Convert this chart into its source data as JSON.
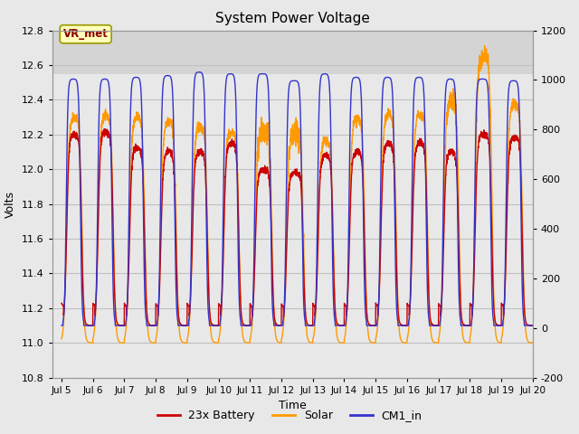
{
  "title": "System Power Voltage",
  "xlabel": "Time",
  "ylabel": "Volts",
  "ylim_left": [
    10.8,
    12.8
  ],
  "ylim_right": [
    -200,
    1200
  ],
  "xtick_labels": [
    "Jul 5",
    "Jul 6",
    "Jul 7",
    "Jul 8",
    "Jul 9",
    "Jul 10",
    "Jul 11",
    "Jul 12",
    "Jul 13",
    "Jul 14",
    "Jul 15",
    "Jul 16",
    "Jul 17",
    "Jul 18",
    "Jul 19",
    "Jul 20"
  ],
  "xtick_positions": [
    5,
    6,
    7,
    8,
    9,
    10,
    11,
    12,
    13,
    14,
    15,
    16,
    17,
    18,
    19,
    20
  ],
  "ytick_left": [
    10.8,
    11.0,
    11.2,
    11.4,
    11.6,
    11.8,
    12.0,
    12.2,
    12.4,
    12.6,
    12.8
  ],
  "ytick_right": [
    -200,
    0,
    200,
    400,
    600,
    800,
    1000,
    1200
  ],
  "battery_color": "#cc0000",
  "solar_color": "#ff9900",
  "cm1_color": "#3333cc",
  "legend_label_battery": "23x Battery",
  "legend_label_solar": "Solar",
  "legend_label_cm1": "CM1_in",
  "annotation_text": "VR_met",
  "bg_color": "#e8e8e8",
  "plot_bg_color": "#e8e8e8",
  "upper_band_color": "#d0d0d0",
  "grid_color": "#c8c8c8",
  "linewidth": 1.0,
  "xlim": [
    4.7,
    20.0
  ]
}
